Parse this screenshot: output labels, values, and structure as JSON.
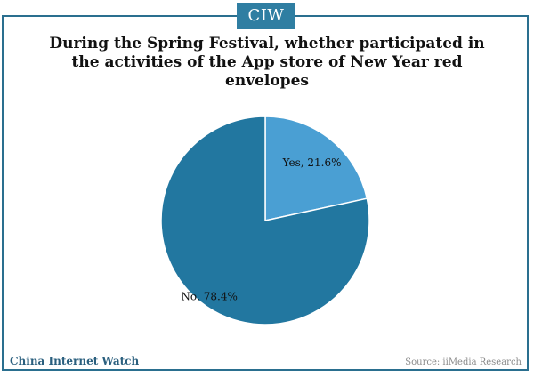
{
  "header": {
    "badge": "CIW"
  },
  "chart_data": {
    "type": "pie",
    "title": "During the Spring Festival, whether participated in the activities of  the App store of  New Year red envelopes",
    "slices": [
      {
        "label": "Yes",
        "value": 21.6,
        "display": "Yes, 21.6%",
        "color": "#4a9fd3"
      },
      {
        "label": "No",
        "value": 78.4,
        "display": "No, 78.4%",
        "color": "#2277a0"
      }
    ]
  },
  "footer": {
    "brand": "China Internet Watch",
    "source": "Source: iiMedia Research"
  }
}
